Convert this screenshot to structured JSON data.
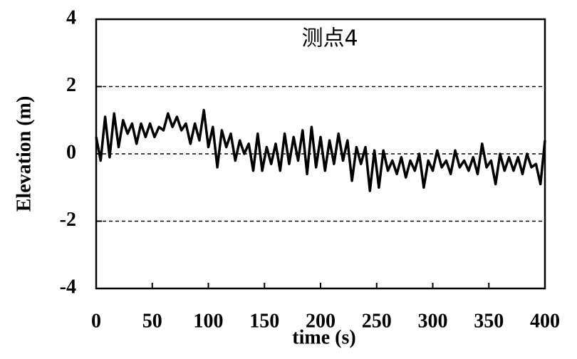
{
  "chart_data": {
    "type": "line",
    "title": "测点4",
    "xlabel": "time (s)",
    "ylabel": "Elevation (m)",
    "x": [
      0,
      4,
      8,
      12,
      16,
      20,
      24,
      28,
      32,
      36,
      40,
      44,
      48,
      52,
      56,
      60,
      64,
      68,
      72,
      76,
      80,
      84,
      88,
      92,
      96,
      100,
      104,
      108,
      112,
      116,
      120,
      124,
      128,
      132,
      136,
      140,
      144,
      148,
      152,
      156,
      160,
      164,
      168,
      172,
      176,
      180,
      184,
      188,
      192,
      196,
      200,
      204,
      208,
      212,
      216,
      220,
      224,
      228,
      232,
      236,
      240,
      244,
      248,
      252,
      256,
      260,
      264,
      268,
      272,
      276,
      280,
      284,
      288,
      292,
      296,
      300,
      304,
      308,
      312,
      316,
      320,
      324,
      328,
      332,
      336,
      340,
      344,
      348,
      352,
      356,
      360,
      364,
      368,
      372,
      376,
      380,
      384,
      388,
      392,
      396,
      400
    ],
    "series": [
      {
        "color": "#000000",
        "values": [
          0.5,
          -0.2,
          1.1,
          -0.1,
          1.2,
          0.2,
          1.0,
          0.6,
          0.9,
          0.3,
          0.9,
          0.5,
          0.9,
          0.5,
          0.8,
          0.7,
          1.2,
          0.8,
          1.1,
          0.7,
          0.9,
          0.3,
          0.9,
          0.4,
          1.3,
          0.2,
          0.8,
          -0.4,
          0.7,
          0.2,
          0.6,
          -0.2,
          0.4,
          0.0,
          0.3,
          -0.5,
          0.6,
          -0.5,
          0.2,
          -0.3,
          0.3,
          -0.5,
          0.6,
          -0.3,
          0.5,
          -0.2,
          0.7,
          -0.6,
          0.8,
          -0.4,
          0.5,
          -0.5,
          0.4,
          -0.3,
          0.6,
          -0.2,
          0.4,
          -0.8,
          0.2,
          -0.3,
          0.2,
          -1.1,
          0.1,
          -1.0,
          0.1,
          -0.5,
          -0.2,
          -0.6,
          -0.1,
          -0.7,
          -0.2,
          -0.5,
          0.0,
          -1.0,
          -0.2,
          -0.5,
          0.1,
          -0.4,
          -0.2,
          -0.6,
          0.1,
          -0.4,
          -0.2,
          -0.5,
          -0.1,
          -0.6,
          0.3,
          -0.4,
          -0.2,
          -0.9,
          0.0,
          -0.5,
          -0.1,
          -0.5,
          -0.1,
          -0.6,
          0.0,
          -0.4,
          -0.3,
          -0.9,
          0.4
        ]
      }
    ],
    "xlim": [
      0,
      400
    ],
    "xticks": [
      0,
      50,
      100,
      150,
      200,
      250,
      300,
      350,
      400
    ],
    "ylim": [
      -4,
      4
    ],
    "yticks": [
      -4,
      -2,
      0,
      2,
      4
    ],
    "grid": true
  }
}
